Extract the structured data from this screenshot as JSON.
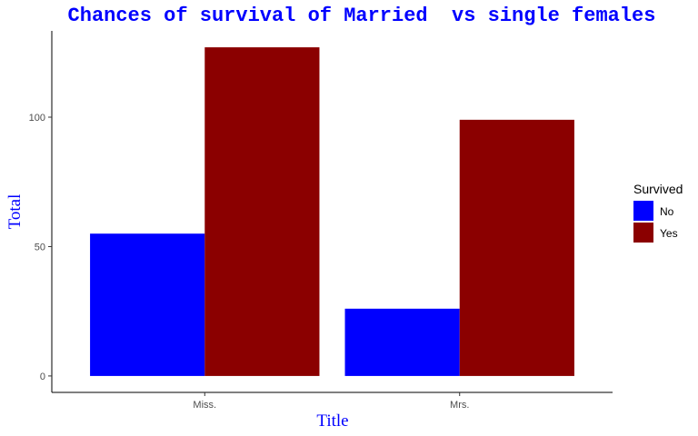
{
  "colors": {
    "title": "#0000ff",
    "axis_title": "#0000ff",
    "no": "#0000ff",
    "yes": "#8b0000"
  },
  "chart_data": {
    "type": "bar",
    "title": "Chances of survival of Married  vs single females",
    "xlabel": "Title",
    "ylabel": "Total",
    "categories": [
      "Miss.",
      "Mrs."
    ],
    "series": [
      {
        "name": "No",
        "values": [
          55,
          26
        ]
      },
      {
        "name": "Yes",
        "values": [
          127,
          99
        ]
      }
    ],
    "ylim": [
      -6.35,
      133.35
    ],
    "yticks": [
      0,
      50,
      100
    ],
    "grid": false,
    "legend": {
      "title": "Survived",
      "position": "right"
    }
  }
}
